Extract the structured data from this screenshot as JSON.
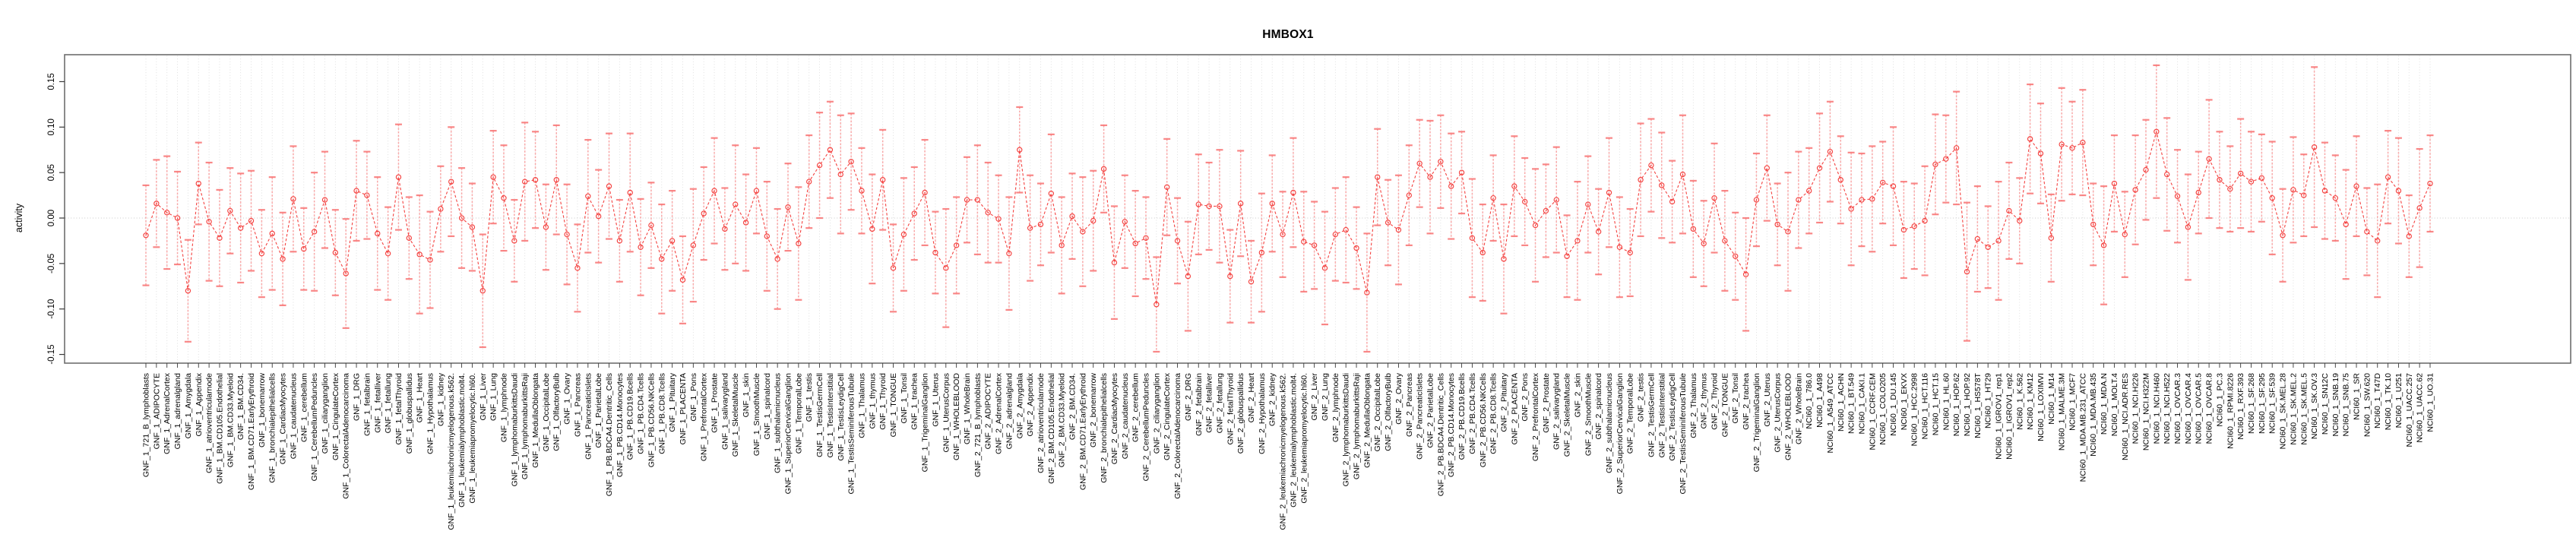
{
  "chart_data": {
    "type": "scatter",
    "title": "HMBOX1",
    "ylabel": "activity",
    "xlabel": "",
    "ylim": [
      -0.155,
      0.175
    ],
    "grid": "dotted vertical gridline per category; dotted horizontal line at zero",
    "legend": "none",
    "marker": "open-circle",
    "line_style": "dashed",
    "error_bars": "symmetric, capped, semi-transparent",
    "colors": {
      "line": "#f4413f",
      "point": "#f4413f",
      "error_bar": "#f98a8a",
      "error_cap": "#f87272",
      "grid": "#dcdcdc",
      "zero_line": "#c9c9c9",
      "axis": "#3a3a3a",
      "box": "#6e6e6e",
      "text": "#000000"
    },
    "ytick_values": [
      0.15,
      0.1,
      0.05,
      0.0,
      -0.05,
      -0.1,
      -0.15
    ],
    "ytick_labels": [
      "0.15",
      "0.10",
      "0.05",
      "0.00",
      "-0.05",
      "-0.10",
      "-0.15"
    ],
    "categories": [
      "GNF_1_721_B_lymphoblasts",
      "GNF_1_ADIPOCYTE",
      "GNF_1_AdrenalCortex",
      "GNF_1_adrenalgland",
      "GNF_1_Amygdala",
      "GNF_1_Appendix",
      "GNF_1_atrioventricularnode",
      "GNF_1_BM.CD105.Endothelial",
      "GNF_1_BM.CD33.Myeloid",
      "GNF_1_BM.CD34.",
      "GNF_1_BM.CD71.EarlyErythroid",
      "GNF_1_bonemarrow",
      "GNF_1_bronchialepithelialcells",
      "GNF_1_CardiacMyocytes",
      "GNF_1_caudatenucleus",
      "GNF_1_cerebellum",
      "GNF_1_CerebellumPeduncles",
      "GNF_1_ciliaryganglion",
      "GNF_1_CingulateCortex",
      "GNF_1_ColorectalAdenocarcinoma",
      "GNF_1_DRG",
      "GNF_1_fetalbrain",
      "GNF_1_fetalliver",
      "GNF_1_fetallung",
      "GNF_1_fetalThyroid",
      "GNF_1_globuspallidus",
      "GNF_1_Heart",
      "GNF_1_Hypothalamus",
      "GNF_1_kidney",
      "GNF_1_leukemiachronicmyelogenous.k562.",
      "GNF_1_leukemialymphoblastic.molt4.",
      "GNF_1_leukemiapromyelocytic.hl60.",
      "GNF_1_Liver",
      "GNF_1_Lung",
      "GNF_1_lymphnode",
      "GNF_1_lymphomaburkittsDaudi",
      "GNF_1_lymphomaburkittsRaji",
      "GNF_1_MedullaOblongata",
      "GNF_1_OccipitalLobe",
      "GNF_1_OlfactoryBulb",
      "GNF_1_Ovary",
      "GNF_1_Pancreas",
      "GNF_1_PancreaticIslets",
      "GNF_1_ParietalLobe",
      "GNF_1_PB.BDCA4.Dentritic_Cells",
      "GNF_1_PB.CD14.Monocytes",
      "GNF_1_PB.CD19.Bcells",
      "GNF_1_PB.CD4.Tcells",
      "GNF_1_PB.CD56.NKCells",
      "GNF_1_PB.CD8.Tcells",
      "GNF_1_Pituitary",
      "GNF_1_PLACENTA",
      "GNF_1_Pons",
      "GNF_1_PrefrontalCortex",
      "GNF_1_Prostate",
      "GNF_1_salivarygland",
      "GNF_1_SkeletalMuscle",
      "GNF_1_skin",
      "GNF_1_SmoothMuscle",
      "GNF_1_spinalcord",
      "GNF_1_subthalamicnucleus",
      "GNF_1_SuperiorCervicalGanglion",
      "GNF_1_TemporalLobe",
      "GNF_1_testis",
      "GNF_1_TestisGermCell",
      "GNF_1_TestisInterstitial",
      "GNF_1_TestisLeydigCell",
      "GNF_1_TestisSeminiferousTubule",
      "GNF_1_Thalamus",
      "GNF_1_thymus",
      "GNF_1_Thyroid",
      "GNF_1_TONGUE",
      "GNF_1_Tonsil",
      "GNF_1_trachea",
      "GNF_1_TrigeminalGanglion",
      "GNF_1_Uterus",
      "GNF_1_UterusCorpus",
      "GNF_1_WHOLEBLOOD",
      "GNF_1_WholeBrain",
      "GNF_2_721_B_lymphoblasts",
      "GNF_2_ADIPOCYTE",
      "GNF_2_AdrenalCortex",
      "GNF_2_adrenalgland",
      "GNF_2_Amygdala",
      "GNF_2_Appendix",
      "GNF_2_atrioventricularnode",
      "GNF_2_BM.CD105.Endothelial",
      "GNF_2_BM.CD33.Myeloid",
      "GNF_2_BM.CD34.",
      "GNF_2_BM.CD71.EarlyErythroid",
      "GNF_2_bonemarrow",
      "GNF_2_bronchialepithelialcells",
      "GNF_2_CardiacMyocytes",
      "GNF_2_caudatenucleus",
      "GNF_2_cerebellum",
      "GNF_2_CerebellumPeduncles",
      "GNF_2_ciliaryganglion",
      "GNF_2_CingulateCortex",
      "GNF_2_ColorectalAdenocarcinoma",
      "GNF_2_DRG",
      "GNF_2_fetalbrain",
      "GNF_2_fetalliver",
      "GNF_2_fetallung",
      "GNF_2_fetalThyroid",
      "GNF_2_globuspallidus",
      "GNF_2_Heart",
      "GNF_2_Hypothalamus",
      "GNF_2_kidney",
      "GNF_2_leukemiachronicmyelogenous.k562.",
      "GNF_2_leukemialymphoblastic.molt4.",
      "GNF_2_leukemiapromyelocytic.hl60.",
      "GNF_2_Liver",
      "GNF_2_Lung",
      "GNF_2_lymphnode",
      "GNF_2_lymphomaburkittsDaudi",
      "GNF_2_lymphomaburkittsRaji",
      "GNF_2_MedullaOblongata",
      "GNF_2_OccipitalLobe",
      "GNF_2_OlfactoryBulb",
      "GNF_2_Ovary",
      "GNF_2_Pancreas",
      "GNF_2_PancreaticIslets",
      "GNF_2_ParietalLobe",
      "GNF_2_PB.BDCA4.Dentritic_Cells",
      "GNF_2_PB.CD14.Monocytes",
      "GNF_2_PB.CD19.Bcells",
      "GNF_2_PB.CD4.Tcells",
      "GNF_2_PB.CD56.NKCells",
      "GNF_2_PB.CD8.Tcells",
      "GNF_2_Pituitary",
      "GNF_2_PLACENTA",
      "GNF_2_Pons",
      "GNF_2_PrefrontalCortex",
      "GNF_2_Prostate",
      "GNF_2_salivarygland",
      "GNF_2_SkeletalMuscle",
      "GNF_2_skin",
      "GNF_2_SmoothMuscle",
      "GNF_2_spinalcord",
      "GNF_2_subthalamicnucleus",
      "GNF_2_SuperiorCervicalGanglion",
      "GNF_2_TemporalLobe",
      "GNF_2_testis",
      "GNF_2_TestisGermCell",
      "GNF_2_TestisInterstitial",
      "GNF_2_TestisLeydigCell",
      "GNF_2_TestisSeminiferousTubule",
      "GNF_2_Thalamus",
      "GNF_2_thymus",
      "GNF_2_Thyroid",
      "GNF_2_TONGUE",
      "GNF_2_Tonsil",
      "GNF_2_trachea",
      "GNF_2_TrigeminalGanglion",
      "GNF_2_Uterus",
      "GNF_2_UterusCorpus",
      "GNF_2_WHOLEBLOOD",
      "GNF_2_WholeBrain",
      "NCI60_1_786.0",
      "NCI60_1_A498",
      "NCI60_1_A549_ATCC",
      "NCI60_1_ACHN",
      "NCI60_1_BT.549",
      "NCI60_1_CAKI.1",
      "NCI60_1_CCRF.CEM",
      "NCI60_1_COLO205",
      "NCI60_1_DU.145",
      "NCI60_1_EKVX",
      "NCI60_1_HCC.2998",
      "NCI60_1_HCT.116",
      "NCI60_1_HCT.15",
      "NCI60_1_HL.60",
      "NCI60_1_HOP.62",
      "NCI60_1_HOP.92",
      "NCI60_1_HS578T",
      "NCI60_1_HT29",
      "NCI60_1_IGROV1_rep1",
      "NCI60_1_IGROV1_rep2",
      "NCI60_1_K.562",
      "NCI60_1_KM12",
      "NCI60_1_LOXIMVI",
      "NCI60_1_M14",
      "NCI60_1_MALME.3M",
      "NCI60_1_MCF7",
      "NCI60_1_MDA.MB.231_ATCC",
      "NCI60_1_MDA.MB.435",
      "NCI60_1_MDA.N",
      "NCI60_1_MOLT.4",
      "NCI60_1_NCI.ADR.RES",
      "NCI60_1_NCI.H226",
      "NCI60_1_NCI.H322M",
      "NCI60_1_NCI.H460",
      "NCI60_1_NCI.H522",
      "NCI60_1_OVCAR.3",
      "NCI60_1_OVCAR.4",
      "NCI60_1_OVCAR.5",
      "NCI60_1_OVCAR.8",
      "NCI60_1_PC.3",
      "NCI60_1_RPMI.8226",
      "NCI60_1_RXF.393",
      "NCI60_1_SF.268",
      "NCI60_1_SF.295",
      "NCI60_1_SF.539",
      "NCI60_1_SK.MEL.28",
      "NCI60_1_SK.MEL.2",
      "NCI60_1_SK.MEL.5",
      "NCI60_1_SK.OV.3",
      "NCI60_1_SN12C",
      "NCI60_1_SNB.19",
      "NCI60_1_SNB.75",
      "NCI60_1_SR",
      "NCI60_1_SW.620",
      "NCI60_1_T47D",
      "NCI60_1_TK.10",
      "NCI60_1_U251",
      "NCI60_1_UACC.257",
      "NCI60_1_UACC.62",
      "NCI60_1_UO.31"
    ],
    "series": [
      {
        "name": "activity",
        "values": [
          -0.019,
          0.016,
          0.006,
          0.0,
          -0.08,
          0.038,
          -0.004,
          -0.022,
          0.008,
          -0.011,
          -0.003,
          -0.039,
          -0.017,
          -0.045,
          0.021,
          -0.034,
          -0.015,
          0.02,
          -0.038,
          -0.061,
          0.03,
          0.025,
          -0.017,
          -0.039,
          0.045,
          -0.022,
          -0.04,
          -0.046,
          0.01,
          0.04,
          0.0,
          -0.01,
          -0.08,
          0.045,
          0.022,
          -0.025,
          0.04,
          0.042,
          -0.01,
          0.042,
          -0.018,
          -0.055,
          0.024,
          0.002,
          0.035,
          -0.025,
          0.028,
          -0.032,
          -0.008,
          -0.045,
          -0.025,
          -0.068,
          -0.03,
          0.005,
          0.03,
          -0.012,
          0.015,
          -0.005,
          0.03,
          -0.02,
          -0.045,
          0.012,
          -0.028,
          0.04,
          0.058,
          0.075,
          0.048,
          0.062,
          0.03,
          -0.012,
          0.042,
          -0.055,
          -0.018,
          0.005,
          0.028,
          -0.038,
          -0.055,
          -0.03,
          0.02,
          0.02,
          0.006,
          -0.001,
          -0.039,
          0.075,
          -0.011,
          -0.007,
          0.027,
          -0.03,
          0.002,
          -0.015,
          -0.003,
          0.054,
          -0.049,
          -0.004,
          -0.028,
          -0.022,
          -0.095,
          0.034,
          -0.025,
          -0.064,
          0.015,
          0.013,
          0.013,
          -0.064,
          0.016,
          -0.07,
          -0.038,
          0.016,
          -0.018,
          0.028,
          -0.026,
          -0.03,
          -0.055,
          -0.018,
          -0.013,
          -0.033,
          -0.082,
          0.045,
          -0.005,
          -0.013,
          0.025,
          0.06,
          0.045,
          0.062,
          0.035,
          0.05,
          -0.022,
          -0.038,
          0.022,
          -0.045,
          0.035,
          0.018,
          -0.008,
          0.008,
          0.02,
          -0.042,
          -0.025,
          0.015,
          -0.015,
          0.028,
          -0.032,
          -0.038,
          0.042,
          0.058,
          0.036,
          0.018,
          0.048,
          -0.012,
          -0.028,
          0.022,
          -0.025,
          -0.042,
          -0.062,
          0.02,
          0.055,
          -0.007,
          -0.015,
          0.02,
          0.03,
          0.055,
          0.073,
          0.042,
          0.01,
          0.02,
          0.021,
          0.039,
          0.035,
          -0.013,
          -0.009,
          -0.003,
          0.059,
          0.065,
          0.077,
          -0.059,
          -0.023,
          -0.032,
          -0.025,
          0.008,
          -0.003,
          0.087,
          0.071,
          -0.022,
          0.081,
          0.077,
          0.083,
          -0.007,
          -0.03,
          0.038,
          -0.018,
          0.031,
          0.053,
          0.095,
          0.048,
          0.024,
          -0.01,
          0.028,
          0.065,
          0.042,
          0.032,
          0.049,
          0.04,
          0.044,
          0.022,
          -0.019,
          0.031,
          0.025,
          0.078,
          0.03,
          0.022,
          -0.007,
          0.035,
          -0.015,
          -0.025,
          0.045,
          0.03,
          -0.02,
          0.011,
          0.038
        ],
        "error_half_width": [
          0.055,
          0.048,
          0.062,
          0.051,
          0.056,
          0.045,
          0.065,
          0.053,
          0.047,
          0.06,
          0.055,
          0.048,
          0.062,
          0.051,
          0.058,
          0.045,
          0.065,
          0.053,
          0.047,
          0.06,
          0.055,
          0.048,
          0.062,
          0.051,
          0.058,
          0.045,
          0.065,
          0.053,
          0.047,
          0.06,
          0.055,
          0.048,
          0.062,
          0.051,
          0.058,
          0.045,
          0.065,
          0.053,
          0.047,
          0.06,
          0.055,
          0.048,
          0.062,
          0.051,
          0.058,
          0.045,
          0.065,
          0.053,
          0.047,
          0.06,
          0.055,
          0.048,
          0.062,
          0.051,
          0.058,
          0.045,
          0.065,
          0.053,
          0.047,
          0.06,
          0.055,
          0.048,
          0.062,
          0.051,
          0.058,
          0.053,
          0.065,
          0.053,
          0.047,
          0.06,
          0.055,
          0.048,
          0.062,
          0.051,
          0.058,
          0.045,
          0.065,
          0.053,
          0.047,
          0.06,
          0.055,
          0.048,
          0.062,
          0.047,
          0.058,
          0.045,
          0.065,
          0.053,
          0.047,
          0.06,
          0.055,
          0.048,
          0.062,
          0.051,
          0.058,
          0.045,
          0.052,
          0.053,
          0.047,
          0.06,
          0.055,
          0.048,
          0.062,
          0.051,
          0.058,
          0.045,
          0.065,
          0.053,
          0.047,
          0.06,
          0.055,
          0.048,
          0.062,
          0.051,
          0.058,
          0.045,
          0.065,
          0.053,
          0.047,
          0.06,
          0.055,
          0.048,
          0.062,
          0.051,
          0.058,
          0.045,
          0.065,
          0.053,
          0.047,
          0.06,
          0.055,
          0.048,
          0.062,
          0.051,
          0.058,
          0.045,
          0.065,
          0.053,
          0.047,
          0.06,
          0.055,
          0.048,
          0.062,
          0.051,
          0.058,
          0.045,
          0.065,
          0.053,
          0.047,
          0.06,
          0.055,
          0.048,
          0.062,
          0.051,
          0.058,
          0.045,
          0.065,
          0.053,
          0.047,
          0.06,
          0.055,
          0.048,
          0.062,
          0.051,
          0.058,
          0.045,
          0.065,
          0.053,
          0.047,
          0.06,
          0.055,
          0.048,
          0.062,
          0.076,
          0.058,
          0.045,
          0.065,
          0.053,
          0.047,
          0.06,
          0.055,
          0.048,
          0.062,
          0.051,
          0.058,
          0.045,
          0.065,
          0.053,
          0.047,
          0.06,
          0.055,
          0.073,
          0.062,
          0.051,
          0.058,
          0.045,
          0.065,
          0.053,
          0.047,
          0.06,
          0.055,
          0.048,
          0.062,
          0.051,
          0.058,
          0.045,
          0.088,
          0.053,
          0.047,
          0.06,
          0.055,
          0.048,
          0.062,
          0.051,
          0.058,
          0.045,
          0.065,
          0.053
        ]
      }
    ]
  }
}
